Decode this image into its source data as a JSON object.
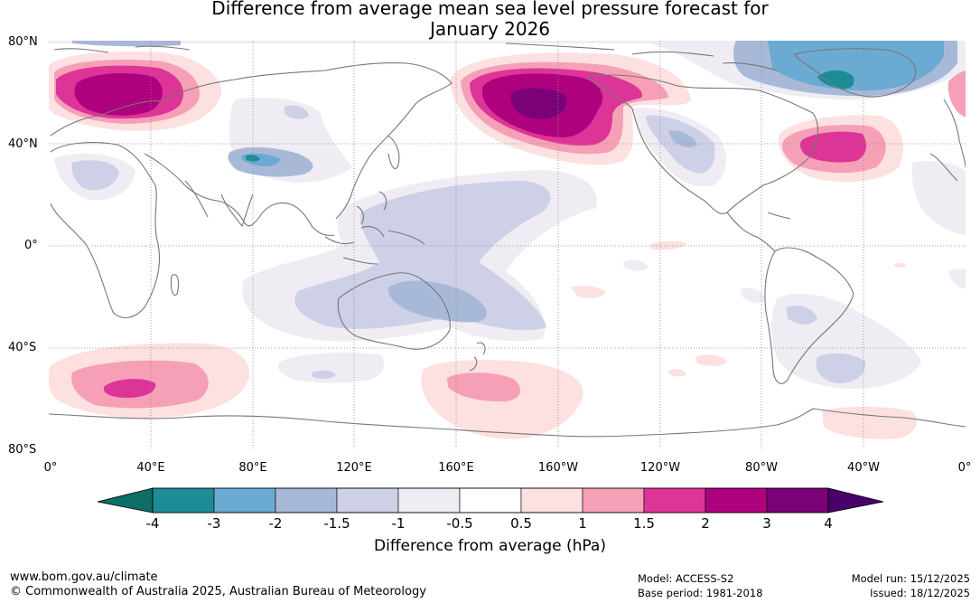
{
  "title_line1": "Difference from average mean sea level pressure forecast for",
  "title_line2": "January 2026",
  "lat_labels": [
    "80°N",
    "40°N",
    "0°",
    "40°S",
    "80°S"
  ],
  "lon_labels": [
    "0°",
    "40°E",
    "80°E",
    "120°E",
    "160°E",
    "160°W",
    "120°W",
    "80°W",
    "40°W",
    "0°"
  ],
  "colorbar": {
    "ticks": [
      "-4",
      "-3",
      "-2",
      "-1.5",
      "-1",
      "-0.5",
      "0.5",
      "1",
      "1.5",
      "2",
      "3",
      "4"
    ],
    "colors": [
      "#0c6e66",
      "#1d8c96",
      "#6baad2",
      "#a8b9d8",
      "#cdd0e6",
      "#efecf4",
      "#ffffff",
      "#fde0e0",
      "#f6a0b8",
      "#dd3497",
      "#ae017e",
      "#7a0177",
      "#49006a"
    ],
    "label": "Difference from average (hPa)"
  },
  "footer": {
    "url": "www.bom.gov.au/climate",
    "copyright": "© Commonwealth of Australia 2025, Australian Bureau of Meteorology",
    "model": "Model: ACCESS-S2",
    "base_period": "Base period: 1981-2018",
    "model_run": "Model run: 15/12/2025",
    "issued": "Issued: 18/12/2025"
  }
}
